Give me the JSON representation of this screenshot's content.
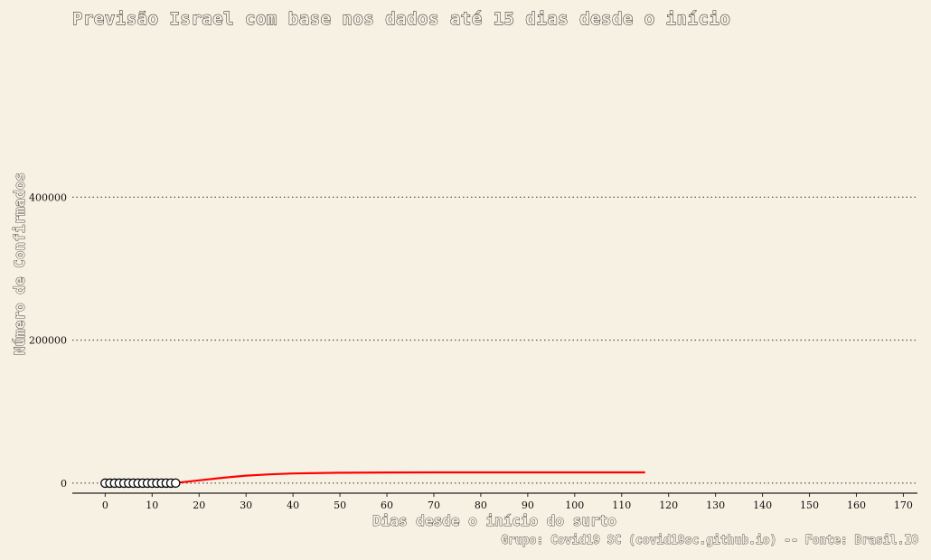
{
  "chart_data": {
    "type": "scatter",
    "title": "Previsão Israel com base nos dados até 15 dias desde o início",
    "xlabel": "Dias desde o início do surto",
    "ylabel": "Número de Confirmados",
    "caption": "Grupo: Covid19 SC (covid19sc.github.io) -- Fonte: Brasil.IO",
    "xlim": [
      -7,
      173
    ],
    "ylim": [
      -14000,
      600000
    ],
    "x_ticks": [
      0,
      10,
      20,
      30,
      40,
      50,
      60,
      70,
      80,
      90,
      100,
      110,
      120,
      130,
      140,
      150,
      160,
      170
    ],
    "y_ticks": [
      0,
      200000,
      400000
    ],
    "y_tick_labels": [
      "0",
      "200000",
      "400000"
    ],
    "grid": "horizontal-dotted",
    "series": [
      {
        "kind": "points",
        "color": "#000000",
        "x": [
          0,
          1,
          2,
          3,
          4,
          5,
          6,
          7,
          8,
          9,
          10,
          11,
          12,
          13,
          14,
          15
        ],
        "y": [
          1,
          1,
          2,
          3,
          4,
          5,
          7,
          10,
          12,
          15,
          20,
          25,
          40,
          60,
          80,
          100
        ]
      },
      {
        "kind": "line",
        "color": "#ff0000",
        "x": [
          15,
          20,
          25,
          30,
          35,
          40,
          50,
          60,
          70,
          80,
          90,
          100,
          110,
          115
        ],
        "y": [
          300,
          4000,
          7500,
          10500,
          12300,
          13500,
          14500,
          14900,
          15000,
          15000,
          15000,
          15000,
          15000,
          15000
        ]
      }
    ]
  }
}
